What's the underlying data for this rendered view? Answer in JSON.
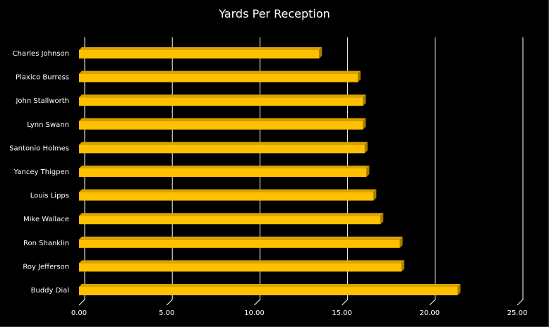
{
  "chart_data": {
    "type": "bar",
    "orientation": "horizontal",
    "style": "3d",
    "title": "Yards Per Reception",
    "categories": [
      "Charles Johnson",
      "Plaxico Burress",
      "John Stallworth",
      "Lynn Swann",
      "Santonio Holmes",
      "Yancey Thigpen",
      "Louis Lipps",
      "Mike Wallace",
      "Ron Shanklin",
      "Roy Jefferson",
      "Buddy Dial"
    ],
    "values": [
      13.7,
      15.9,
      16.2,
      16.2,
      16.3,
      16.4,
      16.8,
      17.2,
      18.3,
      18.4,
      21.6
    ],
    "xlabel": "",
    "ylabel": "",
    "xlim": [
      0,
      25
    ],
    "x_ticks": [
      "0.00",
      "5.00",
      "10.00",
      "15.00",
      "20.00",
      "25.00"
    ],
    "grid": true,
    "legend": "none",
    "colors": {
      "background": "#000000",
      "bar_front": "#FFC000",
      "bar_top": "#D9A300",
      "bar_side": "#A67C00",
      "grid": "#FFFFFF",
      "text": "#FFFFFF"
    }
  }
}
